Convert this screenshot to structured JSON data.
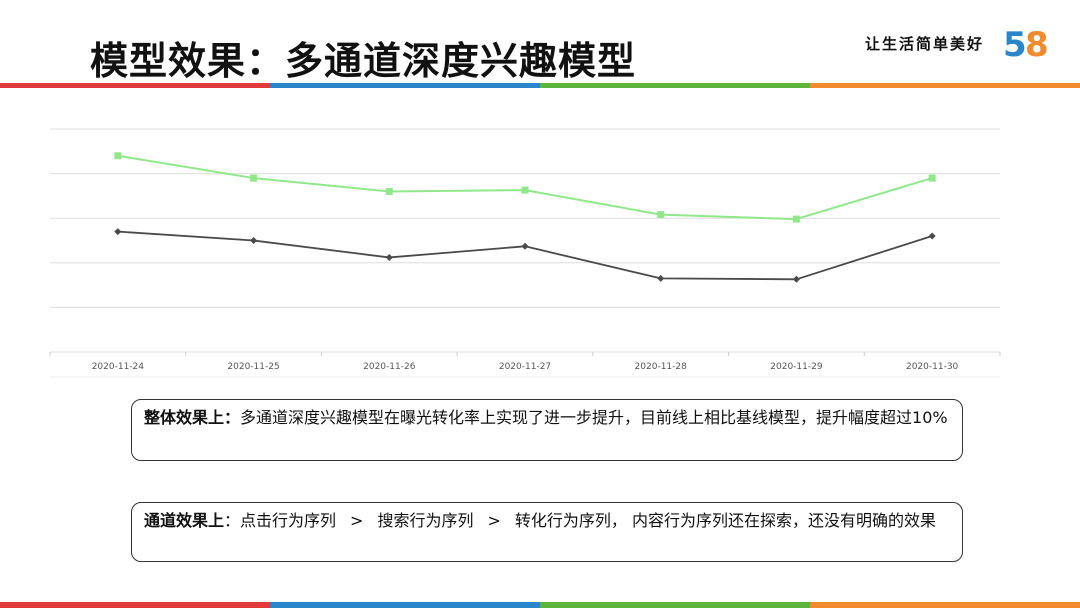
{
  "header": {
    "title": "模型效果：多通道深度兴趣模型",
    "slogan": "让生活简单美好",
    "logo_text": "58"
  },
  "colors": {
    "red": "#e03a3a",
    "blue": "#2a86c8",
    "green": "#5db43c",
    "orange": "#f08c2e",
    "series_light": "#90e88a",
    "series_dark": "#4a4a4a",
    "grid": "#dddddd"
  },
  "chart_data": {
    "type": "line",
    "categories": [
      "2020-11-24",
      "2020-11-25",
      "2020-11-26",
      "2020-11-27",
      "2020-11-28",
      "2020-11-29",
      "2020-11-30"
    ],
    "series": [
      {
        "values": [
          4.4,
          3.9,
          3.6,
          3.63,
          3.08,
          2.98,
          3.9
        ]
      },
      {
        "values": [
          2.7,
          2.5,
          2.12,
          2.37,
          1.65,
          1.63,
          2.6
        ]
      }
    ],
    "ylim": [
      0,
      5
    ],
    "grid": true,
    "y_tick_labels_shown": false,
    "xlabel": "",
    "ylabel": ""
  },
  "boxes": {
    "overall_label": "整体效果上：",
    "overall_text": "多通道深度兴趣模型在曝光转化率上实现了进一步提升，目前线上相比基线模型，提升幅度超过10%",
    "channel_label": "通道效果上",
    "channel_colon": "：",
    "channel_items": [
      "点击行为序列",
      "搜索行为序列",
      "转化行为序列，"
    ],
    "channel_sep": ">",
    "channel_tail": "内容行为序列还在探索，还没有明确的效果"
  }
}
